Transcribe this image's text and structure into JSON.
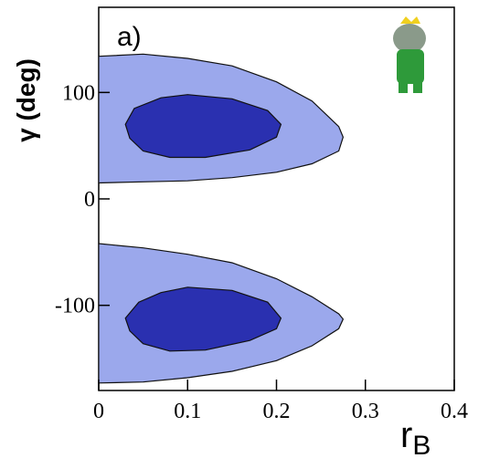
{
  "chart_data": {
    "type": "contour",
    "annotation": "a)",
    "xlabel": "r",
    "xlabel_subscript": "B",
    "ylabel": "γ (deg)",
    "xlim": [
      0,
      0.4
    ],
    "xticks": [
      0,
      0.1,
      0.2,
      0.3,
      0.4
    ],
    "ylim": [
      -180,
      180
    ],
    "yticks": [
      -100,
      0,
      100
    ],
    "series": [
      {
        "color": "#9ba8ec",
        "x": [
          0,
          0.05,
          0.1,
          0.15,
          0.2,
          0.24,
          0.27,
          0.275,
          0.27,
          0.24,
          0.2,
          0.15,
          0.1,
          0.05,
          0
        ],
        "y": [
          134,
          136,
          132,
          125,
          110,
          92,
          68,
          58,
          45,
          33,
          25,
          20,
          17,
          16,
          15
        ]
      },
      {
        "color": "#9ba8ec",
        "x": [
          0,
          0.05,
          0.1,
          0.15,
          0.2,
          0.24,
          0.27,
          0.275,
          0.27,
          0.24,
          0.2,
          0.15,
          0.1,
          0.05,
          0
        ],
        "y": [
          -42,
          -46,
          -52,
          -60,
          -75,
          -92,
          -108,
          -113,
          -122,
          -138,
          -152,
          -162,
          -168,
          -172,
          -173
        ]
      },
      {
        "color": "#2a30b0",
        "x": [
          0.03,
          0.04,
          0.07,
          0.1,
          0.15,
          0.19,
          0.205,
          0.2,
          0.17,
          0.12,
          0.08,
          0.05,
          0.035
        ],
        "y": [
          70,
          85,
          95,
          98,
          94,
          83,
          70,
          58,
          46,
          39,
          39,
          45,
          57
        ]
      },
      {
        "color": "#2a30b0",
        "x": [
          0.03,
          0.045,
          0.07,
          0.1,
          0.15,
          0.19,
          0.205,
          0.2,
          0.17,
          0.12,
          0.08,
          0.05,
          0.035
        ],
        "y": [
          -112,
          -97,
          -88,
          -83,
          -86,
          -97,
          -112,
          -122,
          -133,
          -142,
          -143,
          -136,
          -124
        ]
      }
    ]
  }
}
